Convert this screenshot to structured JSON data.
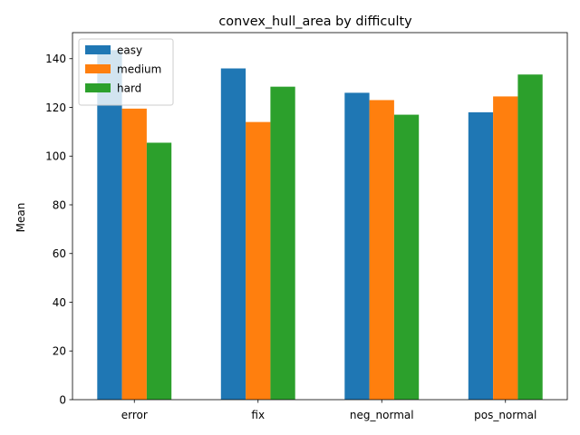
{
  "chart_data": {
    "type": "bar",
    "title": "convex_hull_area by difficulty",
    "xlabel": "",
    "ylabel": "Mean",
    "categories": [
      "error",
      "fix",
      "neg_normal",
      "pos_normal"
    ],
    "series": [
      {
        "name": "easy",
        "color": "#1f77b4",
        "values": [
          143.5,
          136.0,
          126.0,
          118.0
        ]
      },
      {
        "name": "medium",
        "color": "#ff7f0e",
        "values": [
          119.5,
          114.0,
          123.0,
          124.5
        ]
      },
      {
        "name": "hard",
        "color": "#2ca02c",
        "values": [
          105.5,
          128.5,
          117.0,
          133.5
        ]
      }
    ],
    "ylim": [
      0,
      150.7
    ],
    "yticks": [
      0,
      20,
      40,
      60,
      80,
      100,
      120,
      140
    ],
    "grid": false,
    "legend_position": "top-left"
  }
}
